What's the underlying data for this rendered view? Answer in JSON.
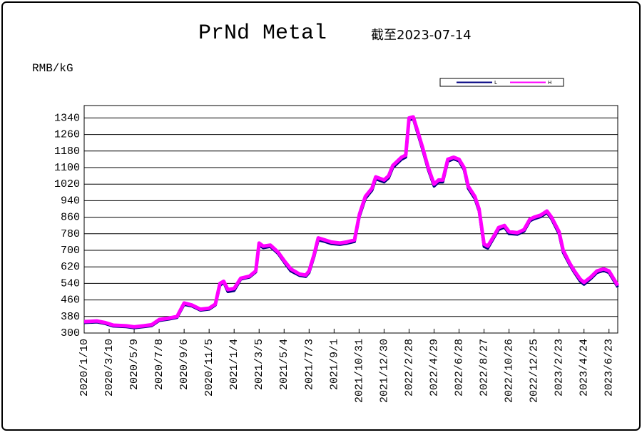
{
  "chart_data": {
    "type": "line",
    "title": "PrNd Metal",
    "subtitle": "截至2023-07-14",
    "y_label": "RMB/kG",
    "xlim": [
      "2020/1/10",
      "2023/7/14"
    ],
    "xticks": [
      "2020/1/10",
      "2020/3/10",
      "2020/5/9",
      "2020/7/8",
      "2020/9/6",
      "2020/11/5",
      "2021/1/4",
      "2021/3/5",
      "2021/5/4",
      "2021/7/3",
      "2021/9/1",
      "2021/10/31",
      "2021/12/30",
      "2022/2/28",
      "2022/4/29",
      "2022/6/28",
      "2022/8/27",
      "2022/10/26",
      "2022/12/25",
      "2023/2/23",
      "2023/4/24",
      "2023/6/23"
    ],
    "ylim": [
      300,
      1400
    ],
    "yticks": [
      300,
      380,
      460,
      540,
      620,
      700,
      780,
      860,
      940,
      1020,
      1100,
      1180,
      1260,
      1340
    ],
    "grid": true,
    "x": [
      "2020/1/10",
      "2020/2/10",
      "2020/3/1",
      "2020/3/20",
      "2020/4/20",
      "2020/5/9",
      "2020/6/1",
      "2020/6/20",
      "2020/7/8",
      "2020/8/1",
      "2020/8/20",
      "2020/9/6",
      "2020/9/25",
      "2020/10/15",
      "2020/11/5",
      "2020/11/20",
      "2020/12/1",
      "2020/12/10",
      "2020/12/20",
      "2021/1/4",
      "2021/1/20",
      "2021/2/10",
      "2021/2/25",
      "2021/3/5",
      "2021/3/15",
      "2021/4/1",
      "2021/4/20",
      "2021/5/4",
      "2021/5/20",
      "2021/6/10",
      "2021/6/25",
      "2021/7/3",
      "2021/7/15",
      "2021/7/25",
      "2021/8/10",
      "2021/8/25",
      "2021/9/15",
      "2021/10/1",
      "2021/10/20",
      "2021/11/1",
      "2021/11/15",
      "2021/12/1",
      "2021/12/10",
      "2021/12/30",
      "2022/1/10",
      "2022/1/20",
      "2022/2/10",
      "2022/2/20",
      "2022/2/28",
      "2022/3/10",
      "2022/3/20",
      "2022/4/1",
      "2022/4/15",
      "2022/4/29",
      "2022/5/10",
      "2022/5/20",
      "2022/6/1",
      "2022/6/15",
      "2022/6/28",
      "2022/7/10",
      "2022/7/20",
      "2022/8/5",
      "2022/8/15",
      "2022/8/27",
      "2022/9/5",
      "2022/9/20",
      "2022/10/1",
      "2022/10/15",
      "2022/10/26",
      "2022/11/15",
      "2022/12/1",
      "2022/12/15",
      "2022/12/25",
      "2023/1/10",
      "2023/1/25",
      "2023/2/5",
      "2023/2/23",
      "2023/3/5",
      "2023/3/20",
      "2023/4/1",
      "2023/4/15",
      "2023/4/24",
      "2023/5/10",
      "2023/5/25",
      "2023/6/10",
      "2023/6/23",
      "2023/7/14"
    ],
    "series": [
      {
        "name": "L",
        "color": "#000080",
        "values": [
          350,
          353,
          345,
          333,
          330,
          325,
          330,
          335,
          360,
          367,
          375,
          438,
          430,
          410,
          415,
          435,
          530,
          545,
          500,
          505,
          560,
          570,
          595,
          725,
          712,
          718,
          683,
          643,
          600,
          578,
          573,
          592,
          670,
          750,
          742,
          732,
          728,
          733,
          742,
          865,
          950,
          990,
          1045,
          1030,
          1050,
          1100,
          1140,
          1150,
          1330,
          1337,
          1270,
          1190,
          1090,
          1010,
          1030,
          1030,
          1130,
          1142,
          1132,
          1090,
          1000,
          950,
          890,
          718,
          710,
          762,
          800,
          812,
          780,
          777,
          792,
          842,
          852,
          862,
          882,
          852,
          780,
          690,
          632,
          592,
          550,
          535,
          562,
          592,
          602,
          592,
          522
        ]
      },
      {
        "name": "H",
        "color": "#ff00ff",
        "values": [
          355,
          358,
          350,
          338,
          335,
          330,
          335,
          340,
          365,
          372,
          380,
          445,
          435,
          415,
          420,
          440,
          540,
          550,
          510,
          515,
          565,
          575,
          600,
          735,
          720,
          725,
          690,
          650,
          610,
          585,
          580,
          600,
          680,
          760,
          750,
          740,
          735,
          740,
          750,
          875,
          960,
          1000,
          1055,
          1040,
          1060,
          1110,
          1150,
          1160,
          1340,
          1345,
          1280,
          1200,
          1100,
          1020,
          1040,
          1040,
          1140,
          1150,
          1140,
          1100,
          1010,
          960,
          900,
          730,
          720,
          770,
          810,
          820,
          790,
          785,
          800,
          850,
          860,
          870,
          890,
          860,
          790,
          700,
          640,
          600,
          560,
          545,
          570,
          600,
          610,
          600,
          530
        ]
      }
    ]
  }
}
